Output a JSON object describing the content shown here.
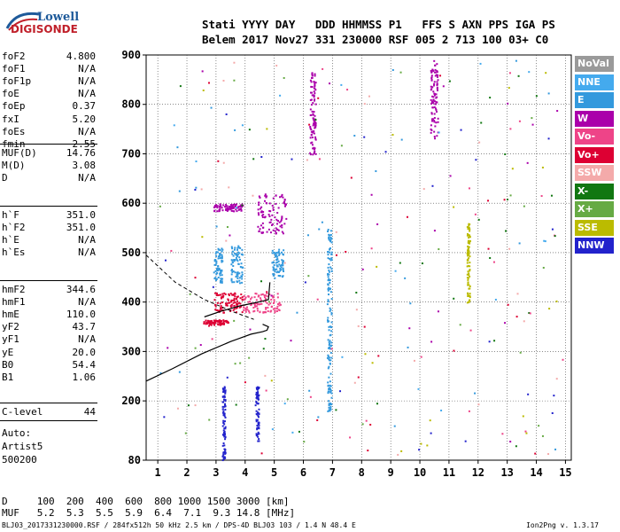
{
  "logo": {
    "brand": "Lowell",
    "product": "DIGISONDE"
  },
  "header": {
    "line1": "Stati YYYY DAY   DDD HHMMSS P1   FFS S AXN PPS IGA PS",
    "line2": "Belem 2017 Nov27 331 230000 RSF 005 2 713 100 03+ C0"
  },
  "params_a": [
    {
      "key": "foF2",
      "value": "4.800"
    },
    {
      "key": "foF1",
      "value": "N/A"
    },
    {
      "key": "foF1p",
      "value": "N/A"
    },
    {
      "key": "foE",
      "value": "N/A"
    },
    {
      "key": "foEp",
      "value": "0.37"
    },
    {
      "key": "fxI",
      "value": "5.20"
    },
    {
      "key": "foEs",
      "value": "N/A"
    },
    {
      "key": "fmin",
      "value": "2.55"
    }
  ],
  "params_b": [
    {
      "key": "MUF(D)",
      "value": "14.76"
    },
    {
      "key": "M(D)",
      "value": "3.08"
    },
    {
      "key": "D",
      "value": "N/A"
    }
  ],
  "params_c": [
    {
      "key": "h`F",
      "value": "351.0"
    },
    {
      "key": "h`F2",
      "value": "351.0"
    },
    {
      "key": "h`E",
      "value": "N/A"
    },
    {
      "key": "h`Es",
      "value": "N/A"
    }
  ],
  "params_d": [
    {
      "key": "hmF2",
      "value": "344.6"
    },
    {
      "key": "hmF1",
      "value": "N/A"
    },
    {
      "key": "hmE",
      "value": "110.0"
    },
    {
      "key": "yF2",
      "value": "43.7"
    },
    {
      "key": "yF1",
      "value": "N/A"
    },
    {
      "key": "yE",
      "value": "20.0"
    },
    {
      "key": "B0",
      "value": "54.4"
    },
    {
      "key": "B1",
      "value": "1.06"
    }
  ],
  "params_e": [
    {
      "key": "C-level",
      "value": "44"
    }
  ],
  "auto": {
    "line1": "Auto:",
    "line2": "Artist5",
    "line3": "500200"
  },
  "legend": [
    {
      "label": "NoVal",
      "color": "#9a9a9a"
    },
    {
      "label": "NNE",
      "color": "#44aaee"
    },
    {
      "label": "E",
      "color": "#3399dd"
    },
    {
      "label": "W",
      "color": "#aa00aa"
    },
    {
      "label": "Vo-",
      "color": "#ee4488"
    },
    {
      "label": "Vo+",
      "color": "#dd0033"
    },
    {
      "label": "SSW",
      "color": "#f4aaaa"
    },
    {
      "label": "X-",
      "color": "#117711"
    },
    {
      "label": "X+",
      "color": "#66aa44"
    },
    {
      "label": "SSE",
      "color": "#bbbb00"
    },
    {
      "label": "NNW",
      "color": "#2222cc"
    }
  ],
  "footer": {
    "d_line": "D     100  200  400  600  800 1000 1500 3000 [km]",
    "muf_line": "MUF   5.2  5.3  5.5  5.9  6.4  7.1  9.3 14.8 [MHz]",
    "info": "BLJ03_2017331230000.RSF / 284fx512h 50 kHz 2.5 km / DPS-4D BLJ03 103 / 1.4 N 48.4 E",
    "version": "Ion2Png v. 1.3.17"
  },
  "chart_data": {
    "type": "scatter",
    "title": "",
    "xlabel": "",
    "ylabel": "",
    "xlim": [
      0.6,
      15.2
    ],
    "ylim": [
      80,
      900
    ],
    "x_ticks": [
      1,
      2,
      3,
      4,
      5,
      6,
      7,
      8,
      9,
      10,
      11,
      12,
      13,
      14,
      15
    ],
    "y_ticks": [
      80,
      200,
      300,
      400,
      500,
      600,
      700,
      800,
      900
    ],
    "grid": true,
    "legend_position": "right",
    "echo_clusters": [
      {
        "series": "Vo+",
        "x": [
          2.55,
          3.4
        ],
        "h": [
          355,
          365
        ]
      },
      {
        "series": "Vo+",
        "x": [
          2.9,
          3.9
        ],
        "h": [
          380,
          420
        ]
      },
      {
        "series": "Vo-",
        "x": [
          3.9,
          5.2
        ],
        "h": [
          380,
          420
        ]
      },
      {
        "series": "E",
        "x": [
          2.9,
          3.2
        ],
        "h": [
          440,
          510
        ]
      },
      {
        "series": "E",
        "x": [
          3.5,
          3.9
        ],
        "h": [
          440,
          520
        ]
      },
      {
        "series": "W",
        "x": [
          2.9,
          3.9
        ],
        "h": [
          585,
          600
        ]
      },
      {
        "series": "E",
        "x": [
          4.9,
          5.3
        ],
        "h": [
          450,
          510
        ]
      },
      {
        "series": "W",
        "x": [
          4.4,
          5.4
        ],
        "h": [
          540,
          620
        ]
      },
      {
        "series": "W",
        "x": [
          6.2,
          6.4
        ],
        "h": [
          700,
          880
        ]
      },
      {
        "series": "E",
        "x": [
          6.8,
          6.95
        ],
        "h": [
          180,
          550
        ]
      },
      {
        "series": "W",
        "x": [
          10.35,
          10.6
        ],
        "h": [
          730,
          890
        ]
      },
      {
        "series": "SSE",
        "x": [
          11.6,
          11.7
        ],
        "h": [
          400,
          560
        ]
      },
      {
        "series": "NNW",
        "x": [
          3.2,
          3.3
        ],
        "h": [
          80,
          230
        ]
      },
      {
        "series": "NNW",
        "x": [
          4.35,
          4.45
        ],
        "h": [
          120,
          230
        ]
      }
    ],
    "trace_curves": [
      {
        "name": "virtual height trace",
        "x": [
          0.6,
          1.5,
          2.5,
          3.5,
          4.2,
          4.6,
          4.75,
          4.8,
          4.6
        ],
        "h": [
          240,
          265,
          295,
          320,
          335,
          340,
          343,
          350,
          355
        ]
      },
      {
        "name": "profile",
        "x": [
          2.6,
          3.2,
          3.8,
          4.3,
          4.6,
          4.8,
          4.85
        ],
        "h": [
          370,
          382,
          392,
          398,
          402,
          405,
          440
        ]
      }
    ],
    "dashed_curve": {
      "x": [
        0.6,
        1.6,
        2.6,
        3.6,
        4.3
      ],
      "h": [
        495,
        440,
        405,
        380,
        365
      ]
    }
  }
}
